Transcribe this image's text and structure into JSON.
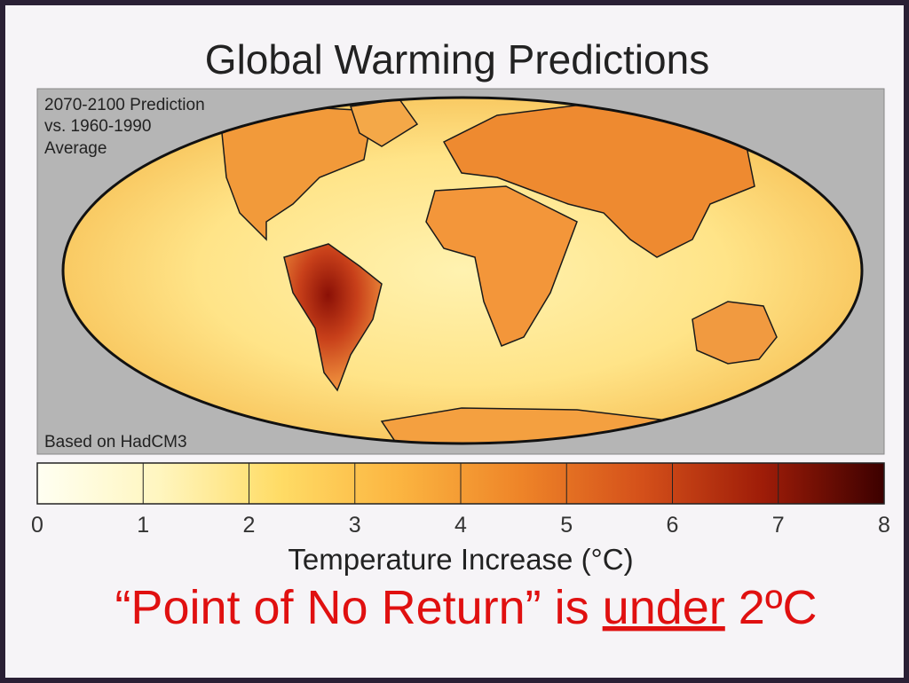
{
  "slide": {
    "title": "Global Warming Predictions",
    "map": {
      "annotation": [
        "2070-2100 Prediction",
        "vs. 1960-1990",
        "Average"
      ],
      "source": "Based on HadCM3"
    },
    "colorbar": {
      "lim": [
        0,
        8
      ],
      "ticks": [
        0,
        1,
        2,
        3,
        4,
        5,
        6,
        7,
        8
      ],
      "label": "Temperature Increase (°C)",
      "colors": [
        "#fffff2",
        "#fff6c0",
        "#ffdc66",
        "#fbb440",
        "#ee8428",
        "#d4501a",
        "#9e1c08",
        "#3c0000"
      ]
    },
    "caption": {
      "parts": [
        "“Point of No Return” is ",
        "under",
        " 2ºC"
      ]
    }
  }
}
